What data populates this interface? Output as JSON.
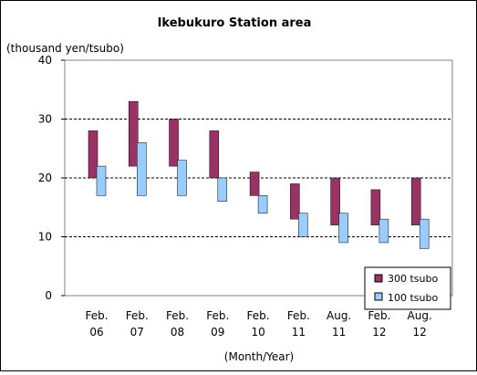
{
  "chart_data": {
    "type": "bar",
    "subtype": "floating-range",
    "title": "Ikebukuro Station area",
    "ylabel": "(thousand yen/tsubo)",
    "xlabel": "(Month/Year)",
    "ylim": [
      0,
      40
    ],
    "yticks": [
      0,
      10,
      20,
      30,
      40
    ],
    "grid": "horizontal-dashed",
    "legend_position": "bottom-right",
    "categories": [
      [
        "Feb.",
        "06"
      ],
      [
        "Feb.",
        "07"
      ],
      [
        "Feb.",
        "08"
      ],
      [
        "Feb.",
        "09"
      ],
      [
        "Feb.",
        "10"
      ],
      [
        "Feb.",
        "11"
      ],
      [
        "Aug.",
        "11"
      ],
      [
        "Feb.",
        "12"
      ],
      [
        "Aug.",
        "12"
      ]
    ],
    "series": [
      {
        "name": "300 tsubo",
        "color": "#993366",
        "low": [
          20,
          22,
          22,
          20,
          17,
          13,
          12,
          12,
          12
        ],
        "high": [
          28,
          33,
          30,
          28,
          21,
          19,
          20,
          18,
          20
        ]
      },
      {
        "name": "100 tsubo",
        "color": "#99CCFF",
        "low": [
          17,
          17,
          17,
          16,
          14,
          10,
          9,
          9,
          8
        ],
        "high": [
          22,
          26,
          23,
          20,
          17,
          14,
          14,
          13,
          13
        ]
      }
    ]
  }
}
